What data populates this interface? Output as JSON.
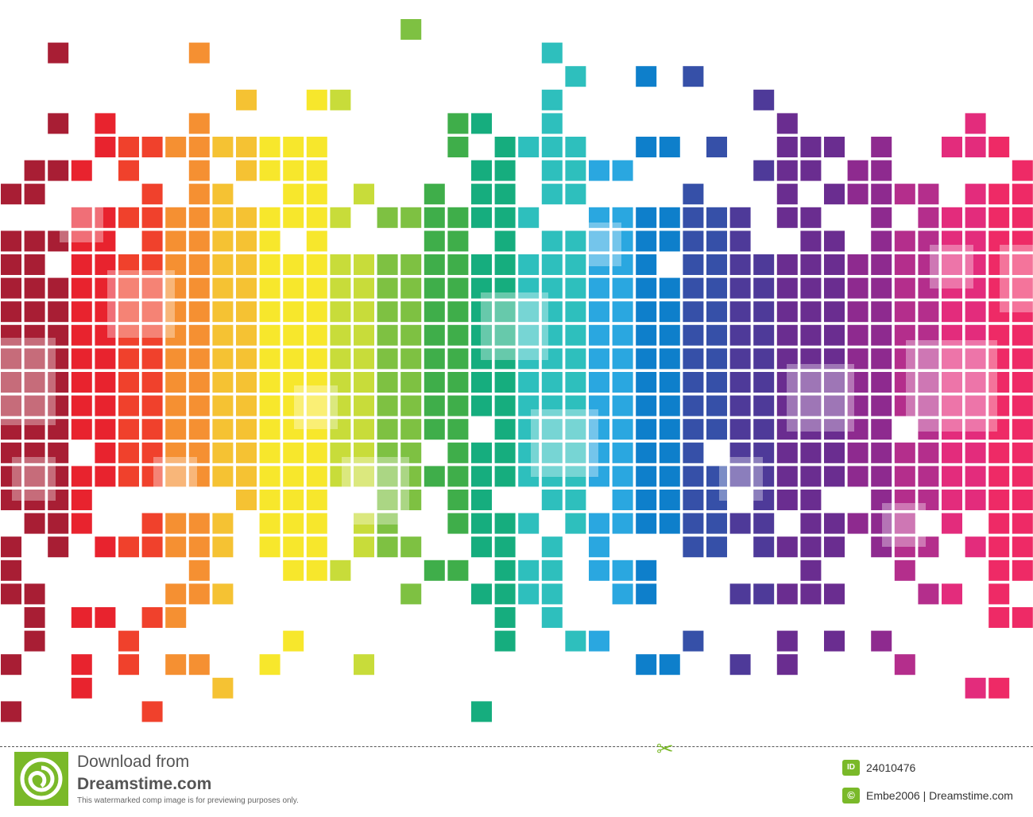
{
  "footer": {
    "download_title": "Download from",
    "site_name": "Dreamstime.com",
    "preview_note": "This watermarked comp image is for previewing purposes only.",
    "id_badge": "ID",
    "image_id": "24010476",
    "copyright_badge": "©",
    "credit": "Embe2006 | Dreamstime.com"
  },
  "icons": {
    "logo": "dreamstime-spiral-logo",
    "cut": "scissors-icon"
  },
  "colors": {
    "accent_green": "#7ab929",
    "spectrum": [
      "#a81e34",
      "#e8232e",
      "#f0412c",
      "#f59032",
      "#f5c233",
      "#f7e72c",
      "#c8dc3a",
      "#7ec142",
      "#3fae4a",
      "#16ad7e",
      "#2ebfbd",
      "#2aa7e0",
      "#0e7fcb",
      "#3650a8",
      "#4e3a99",
      "#6a2d90",
      "#8e2a8f",
      "#b42e8c",
      "#e32c7c",
      "#ee2a66"
    ]
  }
}
